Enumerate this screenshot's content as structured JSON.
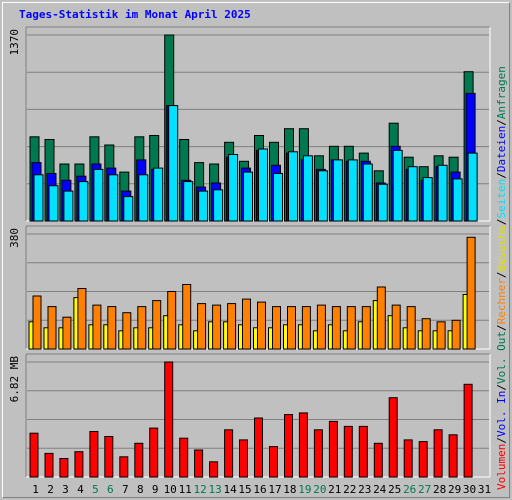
{
  "title": "Tages-Statistik im Monat April 2025",
  "chart_data": {
    "type": "bar",
    "days": [
      "1",
      "2",
      "3",
      "4",
      "5",
      "6",
      "7",
      "8",
      "9",
      "10",
      "11",
      "12",
      "13",
      "14",
      "15",
      "16",
      "17",
      "18",
      "19",
      "20",
      "21",
      "22",
      "23",
      "24",
      "25",
      "26",
      "27",
      "28",
      "29",
      "30",
      "31"
    ],
    "weekend_days": [
      "5",
      "6",
      "12",
      "13",
      "19",
      "20",
      "26",
      "27"
    ],
    "colors": {
      "hits": "#007850",
      "files": "#0000ff",
      "pages": "#00e0ff",
      "visits": "#ffff00",
      "sites": "#ff8000",
      "volume": "#ff0000",
      "weekend_label": "#007850",
      "weekday_label": "#000000"
    },
    "panels": [
      {
        "max_label": "1370",
        "ymax": 1370,
        "series": [
          {
            "name": "Anfragen",
            "color": "#007850",
            "values": [
              620,
              600,
              420,
              420,
              620,
              560,
              360,
              620,
              630,
              1370,
              600,
              430,
              420,
              580,
              440,
              630,
              580,
              680,
              680,
              480,
              550,
              550,
              500,
              370,
              720,
              470,
              400,
              480,
              470,
              1100,
              null
            ]
          },
          {
            "name": "Dateien",
            "color": "#0000ff",
            "values": [
              430,
              350,
              300,
              330,
              420,
              390,
              220,
              450,
              380,
              850,
              300,
              250,
              280,
              470,
              390,
              520,
              410,
              500,
              450,
              380,
              450,
              440,
              440,
              280,
              550,
              380,
              300,
              400,
              360,
              940,
              null
            ]
          },
          {
            "name": "Seiten",
            "color": "#00e0ff",
            "values": [
              340,
              260,
              220,
              290,
              380,
              340,
              180,
              340,
              390,
              850,
              290,
              220,
              230,
              490,
              360,
              530,
              350,
              510,
              480,
              370,
              450,
              450,
              420,
              270,
              520,
              400,
              320,
              410,
              310,
              500,
              null
            ]
          }
        ],
        "legend": [
          "Anfragen",
          "/",
          "Dateien",
          "/",
          "Seiten"
        ]
      },
      {
        "max_label": "380",
        "ymax": 380,
        "series": [
          {
            "name": "Besuche",
            "color": "#ffff00",
            "values": [
              90,
              70,
              70,
              170,
              80,
              80,
              60,
              70,
              70,
              110,
              80,
              60,
              90,
              90,
              80,
              70,
              70,
              80,
              80,
              60,
              80,
              60,
              90,
              160,
              110,
              70,
              60,
              60,
              60,
              180,
              null
            ]
          },
          {
            "name": "Rechner",
            "color": "#ff8000",
            "values": [
              175,
              140,
              105,
              200,
              145,
              140,
              120,
              140,
              160,
              190,
              213,
              150,
              145,
              150,
              165,
              155,
              140,
              140,
              140,
              145,
              140,
              140,
              140,
              205,
              145,
              140,
              100,
              90,
              95,
              369,
              null
            ]
          }
        ],
        "legend": [
          "Besuche",
          "/",
          "Rechner"
        ]
      },
      {
        "max_label": "6.82 MB",
        "ymax": 6.82,
        "series": [
          {
            "name": "Volumen",
            "color": "#ff0000",
            "values": [
              2.6,
              1.4,
              1.1,
              1.5,
              2.7,
              2.4,
              1.2,
              2.0,
              2.9,
              6.82,
              2.3,
              1.6,
              0.9,
              2.8,
              2.2,
              3.5,
              1.8,
              3.7,
              3.8,
              2.8,
              3.3,
              3.0,
              3.0,
              2.0,
              4.7,
              2.2,
              2.1,
              2.8,
              2.5,
              5.5,
              null
            ]
          }
        ],
        "legend": [
          "Volumen",
          "/",
          "Vol. In",
          "/",
          "Vol. Out"
        ]
      }
    ],
    "legend_right": [
      {
        "text": "Volumen",
        "color": "#ff0000"
      },
      {
        "text": "/",
        "color": "#000000"
      },
      {
        "text": "Vol. In",
        "color": "#0000ff"
      },
      {
        "text": "/",
        "color": "#000000"
      },
      {
        "text": "Vol. Out",
        "color": "#007850"
      },
      {
        "text": "/",
        "color": "#000000"
      },
      {
        "text": "Rechner",
        "color": "#ff8000"
      },
      {
        "text": "/",
        "color": "#000000"
      },
      {
        "text": "Besuche",
        "color": "#e0e000"
      },
      {
        "text": "/",
        "color": "#000000"
      },
      {
        "text": "Seiten",
        "color": "#00e0ff"
      },
      {
        "text": "/",
        "color": "#000000"
      },
      {
        "text": "Dateien",
        "color": "#0000ff"
      },
      {
        "text": "/",
        "color": "#000000"
      },
      {
        "text": "Anfragen",
        "color": "#007850"
      }
    ]
  }
}
